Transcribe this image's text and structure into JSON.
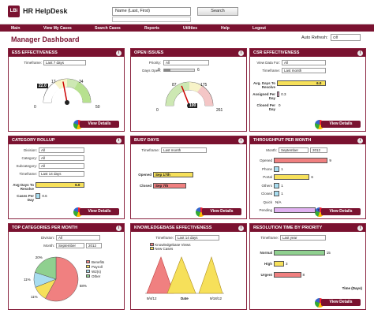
{
  "app": {
    "logo": "LBi",
    "title": "HR HelpDesk"
  },
  "search": {
    "select_value": "Name (Last, First)",
    "button_label": "Search"
  },
  "nav": {
    "items": [
      "Main",
      "View My Cases",
      "Search Cases",
      "Reports",
      "Utilities",
      "Help",
      "Logout"
    ]
  },
  "page": {
    "title": "Manager Dashboard",
    "auto_refresh_label": "Auto Refresh:",
    "auto_refresh_value": "Off"
  },
  "common": {
    "view_details": "View Details"
  },
  "panels": {
    "ess": {
      "title": "ESS EFFECTIVENESS",
      "timeframe_label": "Timeframe:",
      "timeframe_value": "Last 7 days",
      "gauge_value": "22.0",
      "ticks": [
        "0",
        "17",
        "34",
        "50"
      ],
      "needle_fraction": 0.44
    },
    "open_issues": {
      "title": "OPEN ISSUES",
      "priority_label": "Priority:",
      "priority_value": "All",
      "days_open_label": "Days Open:",
      "days_open_min": "0",
      "days_open_max": "6",
      "gauge_value": "100",
      "ticks": [
        "0",
        "87",
        "175",
        "261"
      ],
      "needle_fraction": 0.38
    },
    "csr": {
      "title": "CSR EFFECTIVENESS",
      "view_data_for_label": "View Data For:",
      "view_data_for_value": "All",
      "timeframe_label": "Timeframe:",
      "timeframe_value": "Last month",
      "rows": [
        {
          "label": "Avg. Days To Resolve",
          "value": "6.0",
          "color": "#f6e05a",
          "fraction": 0.97
        },
        {
          "label": "Assigned Per Day",
          "value": "0.3",
          "color": "#f0a0c8",
          "fraction": 0.05
        },
        {
          "label": "Closed Per Day",
          "value": "0",
          "color": "#a8ddf0",
          "fraction": 0.0
        }
      ]
    },
    "category": {
      "title": "CATEGORY ROLLUP",
      "division_label": "Division:",
      "division_value": "All",
      "category_label": "Category:",
      "category_value": "All",
      "subcategory_label": "Subcategory:",
      "subcategory_value": "All",
      "timeframe_label": "Timeframe:",
      "timeframe_value": "Last 14 days",
      "rows": [
        {
          "label": "Avg Days To Resolve",
          "value": "6.0",
          "color": "#f6e05a",
          "fraction": 0.97
        },
        {
          "label": "Cases Per Day",
          "value": "0.6",
          "color": "#a8ddf0",
          "fraction": 0.1
        }
      ]
    },
    "busy": {
      "title": "BUSY DAYS",
      "timeframe_label": "Timeframe:",
      "timeframe_value": "Last month",
      "rows": [
        {
          "label": "Opened",
          "value": "Sep 17th",
          "color": "#f6e05a",
          "fraction": 0.8
        },
        {
          "label": "Closed",
          "value": "Sep 7th",
          "color": "#f08080",
          "fraction": 0.65
        }
      ]
    },
    "throughput": {
      "title": "THROUGHPUT PER MONTH",
      "month_label": "Month:",
      "month_value": "September",
      "year_value": "2012",
      "rows": [
        {
          "label": "Opened",
          "value": "9",
          "color": "#f08080",
          "fraction": 0.95
        },
        {
          "label": "Phone",
          "value": "1",
          "color": "#a8ddf0",
          "fraction": 0.1
        },
        {
          "label": "Portal",
          "value": "6",
          "color": "#f6e05a",
          "fraction": 0.63
        },
        {
          "label": "Others",
          "value": "1",
          "color": "#a8ddf0",
          "fraction": 0.1
        },
        {
          "label": "Closed",
          "value": "1",
          "color": "#a8ddf0",
          "fraction": 0.1
        },
        {
          "label": "Quick",
          "value": "N/A",
          "color": "#ffffff",
          "fraction": 0.0
        },
        {
          "label": "Pending",
          "value": "7",
          "color": "#e0b0f0",
          "fraction": 0.74
        }
      ]
    },
    "top_categories": {
      "title": "TOP CATEGORIES PER MONTH",
      "division_label": "Division:",
      "division_value": "All",
      "month_label": "Month:",
      "month_value": "September",
      "year_value": "2012",
      "legend": [
        "Benefits",
        "Payroll",
        "W2(s)",
        "Other"
      ],
      "slices": [
        {
          "name": "Benefits",
          "percent": 58,
          "label": "58%",
          "color": "#f08080"
        },
        {
          "name": "Payroll",
          "percent": 11,
          "label": "11%",
          "color": "#f6e05a"
        },
        {
          "name": "W2(s)",
          "percent": 11,
          "label": "11%",
          "color": "#a8ddf0"
        },
        {
          "name": "Other",
          "percent": 20,
          "label": "20%",
          "color": "#8fd08f"
        }
      ]
    },
    "kb": {
      "title": "KNOWLEDGEBASE EFFECTIVENESS",
      "timeframe_label": "Timeframe:",
      "timeframe_value": "Last 14 days",
      "legend": [
        "Knowledgebase Views",
        "New Cases"
      ],
      "x_labels": [
        "9/4/12",
        "Date",
        "9/18/12"
      ]
    },
    "resolution": {
      "title": "RESOLUTION TIME BY PRIORITY",
      "timeframe_label": "Timeframe:",
      "timeframe_value": "Last year",
      "axis_label": "Time (Days)",
      "rows": [
        {
          "label": "Normal",
          "value": "15",
          "color": "#8fd08f",
          "fraction": 0.9
        },
        {
          "label": "High",
          "value": "3",
          "color": "#f6e05a",
          "fraction": 0.18
        },
        {
          "label": "Urgent",
          "value": "8",
          "color": "#f08080",
          "fraction": 0.48
        }
      ]
    }
  }
}
